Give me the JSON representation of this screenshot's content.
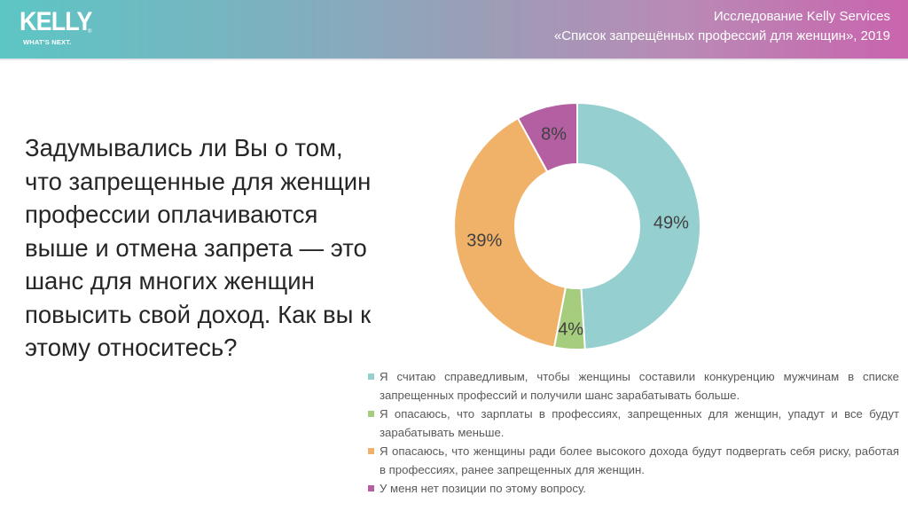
{
  "header": {
    "logo": {
      "word": "KELLY",
      "registered": "®",
      "tagline": "WHAT'S NEXT."
    },
    "study_line1": "Исследование Kelly Services",
    "study_line2": "«Список запрещённых профессий для женщин», 2019",
    "gradient": [
      "#5cc6c4",
      "#9e9cb6",
      "#c964ae"
    ]
  },
  "question": "Задумывались ли Вы о том, что запрещенные для женщин профессии оплачиваются выше и отмена запрета — это шанс для многих женщин повысить свой доход. Как вы к этому относитесь?",
  "chart_data": {
    "type": "pie",
    "variant": "donut",
    "title": "",
    "categories": [
      "Я считаю справедливым, чтобы женщины составили конкуренцию мужчинам в списке запрещенных профессий и получили шанс зарабатывать больше.",
      "Я опасаюсь, что зарплаты в профессиях, запрещенных для женщин, упадут и все будут зарабатывать меньше.",
      "Я опасаюсь, что женщины ради более высокого дохода будут подвергать себя риску, работая в профессиях, ранее запрещенных для женщин.",
      "У меня нет позиции по этому вопросу."
    ],
    "values": [
      49,
      4,
      39,
      8
    ],
    "labels": [
      "49%",
      "4%",
      "39%",
      "8%"
    ],
    "colors": [
      "#96cfcf",
      "#a5cd7d",
      "#f0b168",
      "#b55fa3"
    ],
    "start_angle": "12 o'clock, clockwise",
    "legend_position": "bottom-right"
  }
}
